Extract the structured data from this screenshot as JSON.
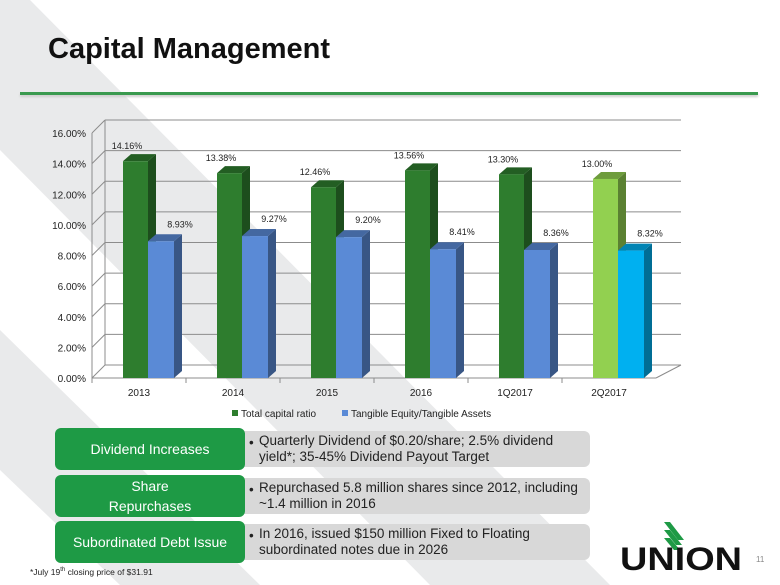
{
  "title": "Capital Management",
  "chart_data": {
    "type": "bar",
    "categories": [
      "2013",
      "2014",
      "2015",
      "2016",
      "1Q2017",
      "2Q2017"
    ],
    "series": [
      {
        "name": "Total capital ratio",
        "values": [
          14.16,
          13.38,
          12.46,
          13.56,
          13.3,
          13.0
        ],
        "labels": [
          "14.16%",
          "13.38%",
          "12.46%",
          "13.56%",
          "13.30%",
          "13.00%"
        ],
        "color": "#2e7d2e",
        "highlight_color": "#92d050"
      },
      {
        "name": "Tangible Equity/Tangible Assets",
        "values": [
          8.93,
          9.27,
          9.2,
          8.41,
          8.36,
          8.32
        ],
        "labels": [
          "8.93%",
          "9.27%",
          "9.20%",
          "8.41%",
          "8.36%",
          "8.32%"
        ],
        "color": "#5a8ad6",
        "highlight_color": "#00b0f0"
      }
    ],
    "y_ticks": [
      "0.00%",
      "2.00%",
      "4.00%",
      "6.00%",
      "8.00%",
      "10.00%",
      "12.00%",
      "14.00%",
      "16.00%"
    ],
    "ylim": [
      0,
      16
    ],
    "grid": true,
    "legend": "bottom",
    "style": "3d-clustered-column"
  },
  "highlights": [
    {
      "label": "Dividend Increases",
      "text": "Quarterly Dividend of $0.20/share; 2.5% dividend yield*; 35-45% Dividend Payout Target"
    },
    {
      "label_line1": "Share",
      "label_line2": "Repurchases",
      "text": "Repurchased 5.8 million shares since 2012, including ~1.4 million in 2016"
    },
    {
      "label": "Subordinated Debt Issue",
      "text": "In 2016, issued $150 million Fixed to Floating subordinated notes due in 2026"
    }
  ],
  "footnote": {
    "pre": "*July 19",
    "sup": "th",
    "post": " closing price of $31.91"
  },
  "logo_text": "UNION",
  "page_number": "11",
  "bullet": "•"
}
